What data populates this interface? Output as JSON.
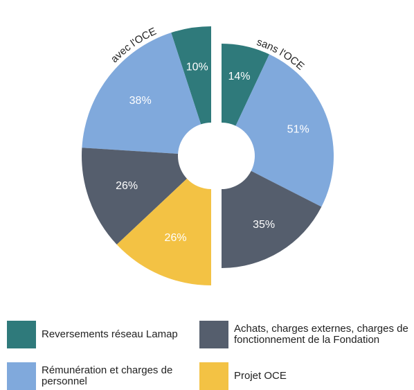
{
  "chart_data": {
    "type": "pie",
    "categories": [
      "Reversements réseau Lamap",
      "Rémunération et charges de personnel",
      "Achats, charges externes, charges de fonctionnement de la Fondation",
      "Projet OCE"
    ],
    "colors": [
      "#2f7a7b",
      "#80a9dc",
      "#555e6d",
      "#f3c244"
    ],
    "series": [
      {
        "name": "avec l'OCE",
        "values": [
          10,
          38,
          26,
          26
        ],
        "value_labels": [
          "10%",
          "38%",
          "26%",
          "26%"
        ]
      },
      {
        "name": "sans l'OCE",
        "values": [
          14,
          51,
          35,
          null
        ],
        "value_labels": [
          "14%",
          "51%",
          "35%",
          null
        ]
      }
    ]
  }
}
